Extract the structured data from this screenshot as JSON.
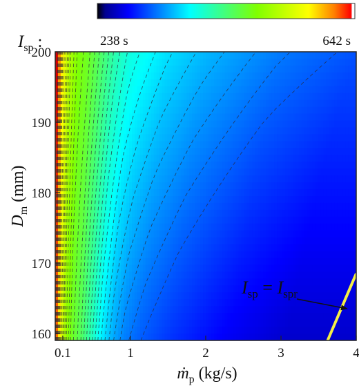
{
  "chart_data": {
    "type": "heatmap",
    "colorbar": {
      "colormap": "jet",
      "min_label": "238 s",
      "max_label": "642 s",
      "label_symbol": "I",
      "label_sub": "sp",
      "label_sep": " :"
    },
    "x": {
      "symbol": "ṁ",
      "sub": "p",
      "unit": " (kg/s)",
      "lim": [
        0.0,
        4.0
      ],
      "ticks": [
        0.1,
        1,
        2,
        3,
        4
      ],
      "tick_labels": [
        "0.1",
        "1",
        "2",
        "3",
        "4"
      ]
    },
    "y": {
      "symbol": "D",
      "sub": "m",
      "unit": " (mm)",
      "lim": [
        159,
        200
      ],
      "ticks": [
        160,
        170,
        180,
        190,
        200
      ],
      "tick_labels": [
        "160",
        "170",
        "180",
        "190",
        "200"
      ]
    },
    "contour_style": "dashed",
    "field_levels_top": [
      {
        "x": 0.02,
        "v": 1.0
      },
      {
        "x": 0.05,
        "v": 0.92
      },
      {
        "x": 0.1,
        "v": 0.8
      },
      {
        "x": 0.2,
        "v": 0.68
      },
      {
        "x": 0.3,
        "v": 0.62
      },
      {
        "x": 0.45,
        "v": 0.58
      },
      {
        "x": 0.6,
        "v": 0.52
      },
      {
        "x": 0.8,
        "v": 0.44
      },
      {
        "x": 1.0,
        "v": 0.39
      },
      {
        "x": 1.5,
        "v": 0.33
      },
      {
        "x": 2.0,
        "v": 0.29
      },
      {
        "x": 2.5,
        "v": 0.26
      },
      {
        "x": 3.0,
        "v": 0.23
      },
      {
        "x": 3.5,
        "v": 0.21
      },
      {
        "x": 4.0,
        "v": 0.19
      }
    ],
    "annotation": {
      "lhs_symbol": "I",
      "lhs_sub": "sp",
      "eq": " = ",
      "rhs_symbol": "I",
      "rhs_sub": "spr",
      "line_color": "#f5ef45",
      "line_points": [
        [
          3.62,
          159
        ],
        [
          4.0,
          168.5
        ]
      ],
      "arrow_to": [
        3.88,
        163.5
      ]
    }
  }
}
